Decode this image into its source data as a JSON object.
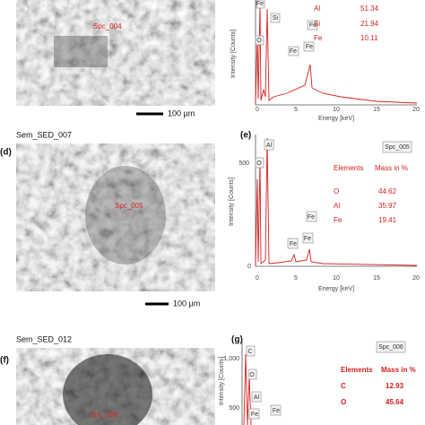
{
  "top": {
    "sem_spot": "Spc_004",
    "scale": "100 µm",
    "spectrum": {
      "ylabel": "Intensity [Counts]",
      "xlabel": "Energy [keV]",
      "xticks": [
        "0",
        "5",
        "10",
        "15",
        "20"
      ],
      "peaks": [
        "Fe",
        "O",
        "Si",
        "Fe",
        "Fe",
        "Fe"
      ],
      "table": [
        [
          "Al",
          "51.34"
        ],
        [
          "Si",
          "21.94"
        ],
        [
          "Fe",
          "10.11"
        ]
      ]
    }
  },
  "middle": {
    "label": "(d)",
    "sem_title": "Sem_SED_007",
    "sem_spot": "Spc_005",
    "scale": "100 µm",
    "spectrum": {
      "label": "(e)",
      "tag": "Spc_005",
      "ylabel": "Intensity [Counts]",
      "xlabel": "Energy [keV]",
      "yticks": [
        "500",
        "0"
      ],
      "xticks": [
        "0",
        "5",
        "10",
        "15",
        "20"
      ],
      "peaks": [
        "Al",
        "O",
        "Fe",
        "Fe",
        "Fe"
      ],
      "table_header": [
        "Elements",
        "Mass in %"
      ],
      "table": [
        [
          "O",
          "44.62"
        ],
        [
          "Al",
          "35.97"
        ],
        [
          "Fe",
          "19.41"
        ]
      ]
    }
  },
  "bottom": {
    "label": "(f)",
    "sem_title": "Sem_SED_012",
    "sem_spot": "Spc_006",
    "spectrum": {
      "label": "(g)",
      "tag": "Spc_006",
      "ylabel": "Intensity [Counts]",
      "yticks": [
        "1,000",
        "500"
      ],
      "peaks": [
        "C",
        "O",
        "Al",
        "Fe",
        "Fe"
      ],
      "table_header": [
        "Elements",
        "Mass in %"
      ],
      "table": [
        [
          "C",
          "12.93"
        ],
        [
          "O",
          "45.64"
        ]
      ]
    }
  }
}
